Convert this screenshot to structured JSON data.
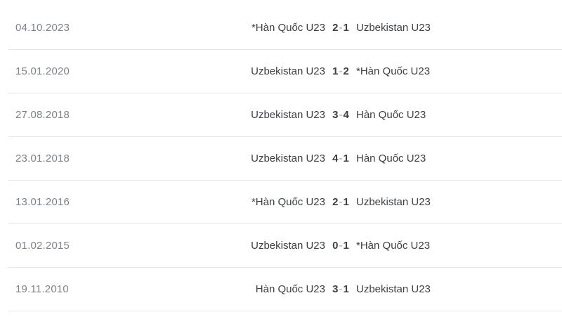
{
  "table": {
    "kind": "head-to-head-results",
    "score_separator": "-",
    "colors": {
      "date_text": "#7d8288",
      "team_text": "#3c4043",
      "score_text": "#3c4043",
      "score_separator": "#95999d",
      "divider": "#e4e6e9",
      "background": "#ffffff"
    },
    "matches": [
      {
        "date": "04.10.2023",
        "home": "*Hàn Quốc U23",
        "home_score": "2",
        "away_score": "1",
        "away": "Uzbekistan U23"
      },
      {
        "date": "15.01.2020",
        "home": "Uzbekistan U23",
        "home_score": "1",
        "away_score": "2",
        "away": "*Hàn Quốc U23"
      },
      {
        "date": "27.08.2018",
        "home": "Uzbekistan U23",
        "home_score": "3",
        "away_score": "4",
        "away": "Hàn Quốc U23"
      },
      {
        "date": "23.01.2018",
        "home": "Uzbekistan U23",
        "home_score": "4",
        "away_score": "1",
        "away": "Hàn Quốc U23"
      },
      {
        "date": "13.01.2016",
        "home": "*Hàn Quốc U23",
        "home_score": "2",
        "away_score": "1",
        "away": "Uzbekistan U23"
      },
      {
        "date": "01.02.2015",
        "home": "Uzbekistan U23",
        "home_score": "0",
        "away_score": "1",
        "away": "*Hàn Quốc U23"
      },
      {
        "date": "19.11.2010",
        "home": "Hàn Quốc U23",
        "home_score": "3",
        "away_score": "1",
        "away": "Uzbekistan U23"
      }
    ]
  }
}
